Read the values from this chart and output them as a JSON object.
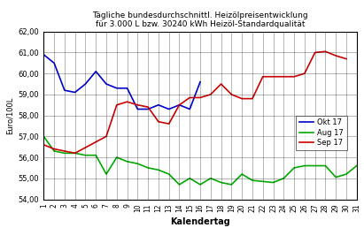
{
  "title_line1": "Tägliche bundesdurchschnittl. Heizölpreisentwicklung",
  "title_line2": "für 3.000 L bzw. 30240 kWh Heizöl-Standardqualität",
  "xlabel": "Kalendertag",
  "ylabel": "Euro/100L",
  "ylim": [
    54.0,
    62.0
  ],
  "yticks": [
    54.0,
    55.0,
    56.0,
    57.0,
    58.0,
    59.0,
    60.0,
    61.0,
    62.0
  ],
  "xticks": [
    1,
    2,
    3,
    4,
    5,
    6,
    7,
    8,
    9,
    10,
    11,
    12,
    13,
    14,
    15,
    16,
    17,
    18,
    19,
    20,
    21,
    22,
    23,
    24,
    25,
    26,
    27,
    28,
    29,
    30,
    31
  ],
  "okt17": [
    60.9,
    60.5,
    59.2,
    59.1,
    59.5,
    60.1,
    59.5,
    59.3,
    59.3,
    58.3,
    58.3,
    58.5,
    58.3,
    58.5,
    58.3,
    59.6,
    null,
    null,
    null,
    null,
    null,
    null,
    null,
    null,
    null,
    null,
    null,
    null,
    null,
    null,
    null
  ],
  "aug17": [
    57.0,
    56.3,
    56.2,
    56.2,
    56.1,
    56.1,
    55.2,
    56.0,
    55.8,
    55.7,
    55.5,
    55.4,
    55.2,
    54.7,
    55.0,
    54.7,
    55.0,
    54.8,
    54.7,
    55.2,
    54.9,
    54.85,
    54.8,
    55.0,
    55.5,
    55.6,
    55.6,
    55.6,
    55.05,
    55.2,
    55.6
  ],
  "sep17": [
    56.6,
    56.4,
    56.3,
    56.2,
    null,
    null,
    57.0,
    58.5,
    58.65,
    58.5,
    58.4,
    57.7,
    57.6,
    58.5,
    58.85,
    58.85,
    59.0,
    59.5,
    59.0,
    58.8,
    58.8,
    59.85,
    59.85,
    59.85,
    59.85,
    60.0,
    61.0,
    61.05,
    60.85,
    60.7,
    null
  ],
  "okt17_color": "#0000CC",
  "aug17_color": "#00AA00",
  "sep17_color": "#CC0000",
  "legend_labels": [
    "Okt 17",
    "Aug 17",
    "Sep 17"
  ],
  "background_color": "#FFFFFF",
  "grid_color": "#000000"
}
